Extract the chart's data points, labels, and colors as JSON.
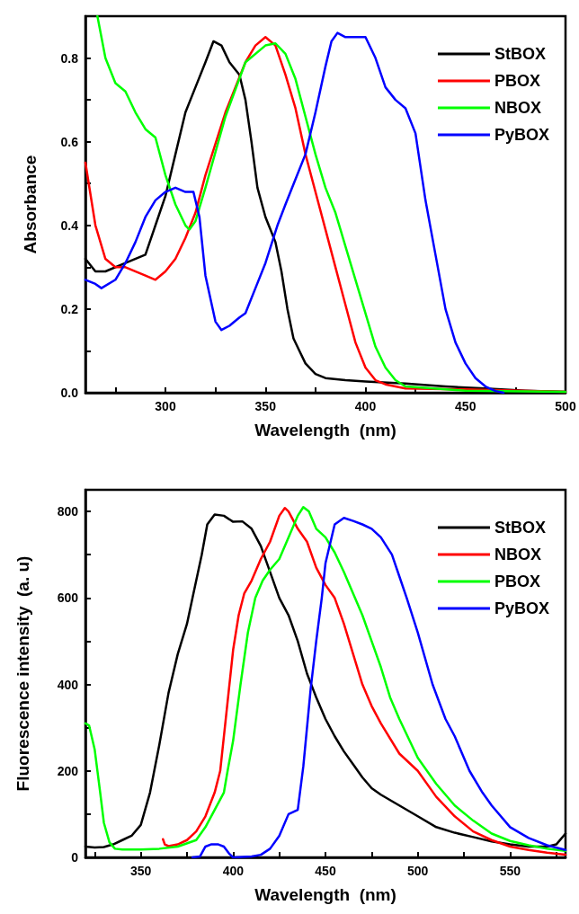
{
  "chart_data": [
    {
      "type": "line",
      "xlabel": "Wavelength  (nm)",
      "ylabel": "Absorbance",
      "xlim": [
        260,
        500
      ],
      "ylim": [
        0,
        0.9
      ],
      "xticks": [
        {
          "value": 275,
          "label": null
        },
        300,
        {
          "value": 325,
          "label": null
        },
        350,
        {
          "value": 375,
          "label": null
        },
        400,
        {
          "value": 425,
          "label": null
        },
        450,
        {
          "value": 475,
          "label": null
        },
        500
      ],
      "yticks": [
        {
          "value": 0,
          "label": "0.0"
        },
        {
          "value": 0.1,
          "label": null
        },
        0.2,
        {
          "value": 0.3,
          "label": null
        },
        0.4,
        {
          "value": 0.5,
          "label": null
        },
        0.6,
        {
          "value": 0.7,
          "label": null
        },
        0.8
      ],
      "legend": "top right",
      "grid": false,
      "marker": "none",
      "line_style": "solid",
      "series": [
        {
          "name": "StBOX",
          "color": "#000000",
          "x": [
            260,
            265,
            270,
            280,
            290,
            295,
            300,
            305,
            310,
            315,
            320,
            324,
            328,
            332,
            337,
            340,
            343,
            346,
            350,
            355,
            358,
            361,
            364,
            367,
            370,
            375,
            380,
            390,
            400,
            420,
            440,
            460,
            480,
            500
          ],
          "values": [
            0.32,
            0.29,
            0.29,
            0.31,
            0.33,
            0.4,
            0.47,
            0.57,
            0.67,
            0.73,
            0.79,
            0.84,
            0.83,
            0.79,
            0.76,
            0.7,
            0.6,
            0.49,
            0.42,
            0.36,
            0.29,
            0.2,
            0.13,
            0.1,
            0.07,
            0.045,
            0.035,
            0.03,
            0.027,
            0.022,
            0.015,
            0.01,
            0.005,
            0.002
          ]
        },
        {
          "name": "PBOX",
          "color": "#ff0000",
          "x": [
            260,
            265,
            270,
            275,
            280,
            290,
            295,
            300,
            305,
            310,
            315,
            320,
            330,
            340,
            345,
            350,
            355,
            360,
            365,
            370,
            375,
            380,
            385,
            390,
            395,
            400,
            405,
            410,
            420,
            450,
            500
          ],
          "values": [
            0.55,
            0.4,
            0.32,
            0.3,
            0.3,
            0.28,
            0.27,
            0.29,
            0.32,
            0.37,
            0.43,
            0.52,
            0.67,
            0.79,
            0.83,
            0.85,
            0.83,
            0.76,
            0.68,
            0.57,
            0.48,
            0.39,
            0.3,
            0.21,
            0.12,
            0.06,
            0.03,
            0.02,
            0.01,
            0.008,
            0.002
          ]
        },
        {
          "name": "NBOX",
          "color": "#00ff00",
          "x": [
            266,
            270,
            275,
            280,
            285,
            290,
            295,
            300,
            305,
            310,
            312,
            315,
            320,
            330,
            340,
            350,
            355,
            360,
            365,
            370,
            375,
            380,
            385,
            390,
            395,
            400,
            405,
            410,
            415,
            420,
            450,
            500
          ],
          "values": [
            0.9,
            0.8,
            0.74,
            0.72,
            0.67,
            0.63,
            0.61,
            0.52,
            0.45,
            0.4,
            0.39,
            0.41,
            0.49,
            0.66,
            0.79,
            0.83,
            0.835,
            0.81,
            0.75,
            0.66,
            0.57,
            0.49,
            0.43,
            0.35,
            0.27,
            0.19,
            0.11,
            0.06,
            0.03,
            0.015,
            0.005,
            0.002
          ]
        },
        {
          "name": "PyBOX",
          "color": "#0000ff",
          "x": [
            260,
            265,
            268,
            275,
            280,
            285,
            290,
            295,
            300,
            305,
            310,
            314,
            317,
            320,
            325,
            328,
            332,
            337,
            340,
            345,
            350,
            356,
            360,
            365,
            370,
            375,
            380,
            383,
            386,
            390,
            395,
            400,
            405,
            410,
            415,
            420,
            425,
            430,
            435,
            440,
            445,
            450,
            455,
            460,
            465,
            469
          ],
          "values": [
            0.27,
            0.26,
            0.25,
            0.27,
            0.31,
            0.36,
            0.42,
            0.46,
            0.48,
            0.49,
            0.48,
            0.48,
            0.42,
            0.28,
            0.17,
            0.15,
            0.16,
            0.18,
            0.19,
            0.25,
            0.31,
            0.4,
            0.45,
            0.51,
            0.57,
            0.67,
            0.78,
            0.84,
            0.86,
            0.85,
            0.85,
            0.85,
            0.8,
            0.73,
            0.7,
            0.68,
            0.62,
            0.46,
            0.33,
            0.2,
            0.12,
            0.07,
            0.035,
            0.015,
            0.004,
            0
          ]
        }
      ]
    },
    {
      "type": "line",
      "xlabel": "Wavelength  (nm)",
      "ylabel": "Fluorescence intensity  (a. u)",
      "xlim": [
        320,
        580
      ],
      "ylim": [
        0,
        850
      ],
      "xticks": [
        {
          "value": 325,
          "label": null
        },
        350,
        {
          "value": 375,
          "label": null
        },
        400,
        {
          "value": 425,
          "label": null
        },
        450,
        {
          "value": 475,
          "label": null
        },
        500,
        {
          "value": 525,
          "label": null
        },
        550,
        {
          "value": 575,
          "label": null
        }
      ],
      "yticks": [
        0,
        {
          "value": 100,
          "label": null
        },
        200,
        {
          "value": 300,
          "label": null
        },
        400,
        {
          "value": 500,
          "label": null
        },
        600,
        {
          "value": 700,
          "label": null
        },
        800
      ],
      "legend": "top right",
      "grid": false,
      "marker": "none",
      "line_style": "solid",
      "series": [
        {
          "name": "StBOX",
          "color": "#000000",
          "x": [
            320,
            325,
            330,
            335,
            340,
            345,
            350,
            355,
            360,
            365,
            370,
            375,
            378,
            383,
            386,
            390,
            395,
            400,
            405,
            410,
            415,
            420,
            425,
            430,
            435,
            440,
            445,
            450,
            455,
            460,
            465,
            470,
            475,
            480,
            490,
            500,
            510,
            520,
            530,
            540,
            550,
            560,
            570,
            575,
            580
          ],
          "values": [
            25,
            23,
            24,
            30,
            40,
            50,
            75,
            150,
            260,
            380,
            470,
            540,
            600,
            700,
            770,
            793,
            790,
            776,
            777,
            760,
            720,
            660,
            600,
            560,
            500,
            425,
            370,
            320,
            280,
            245,
            215,
            185,
            160,
            145,
            120,
            95,
            70,
            57,
            47,
            37,
            30,
            25,
            25,
            30,
            55
          ]
        },
        {
          "name": "NBOX",
          "color": "#ff0000",
          "x": [
            362,
            363,
            365,
            370,
            375,
            380,
            385,
            390,
            393,
            396,
            398,
            400,
            403,
            406,
            410,
            415,
            420,
            425,
            428,
            430,
            435,
            440,
            445,
            450,
            455,
            460,
            465,
            470,
            475,
            480,
            490,
            500,
            510,
            520,
            530,
            540,
            550,
            560,
            570,
            580
          ],
          "values": [
            42,
            30,
            26,
            30,
            40,
            60,
            95,
            150,
            200,
            320,
            400,
            480,
            560,
            610,
            640,
            690,
            730,
            790,
            808,
            800,
            760,
            730,
            670,
            630,
            600,
            540,
            470,
            400,
            350,
            310,
            240,
            200,
            140,
            95,
            60,
            40,
            25,
            17,
            11,
            6
          ]
        },
        {
          "name": "PBOX",
          "color": "#00ff00",
          "x": [
            320,
            322,
            325,
            328,
            330,
            333,
            336,
            340,
            350,
            360,
            370,
            380,
            385,
            390,
            395,
            397,
            400,
            404,
            408,
            412,
            416,
            420,
            425,
            430,
            435,
            438,
            441,
            445,
            450,
            455,
            460,
            465,
            470,
            475,
            480,
            485,
            490,
            500,
            510,
            520,
            530,
            540,
            550,
            560,
            570,
            580
          ],
          "values": [
            310,
            305,
            250,
            150,
            80,
            35,
            20,
            18,
            18,
            20,
            25,
            40,
            70,
            110,
            150,
            200,
            270,
            400,
            520,
            600,
            640,
            665,
            690,
            740,
            790,
            810,
            800,
            760,
            740,
            705,
            660,
            610,
            560,
            500,
            440,
            370,
            320,
            230,
            170,
            120,
            85,
            55,
            38,
            28,
            20,
            15
          ]
        },
        {
          "name": "PyBOX",
          "color": "#0000ff",
          "x": [
            378,
            382,
            385,
            388,
            392,
            395,
            398,
            400,
            410,
            415,
            420,
            425,
            430,
            435,
            438,
            440,
            442,
            445,
            448,
            450,
            455,
            460,
            465,
            470,
            475,
            480,
            486,
            490,
            494,
            500,
            508,
            515,
            520,
            528,
            535,
            540,
            550,
            560,
            570,
            580
          ],
          "values": [
            0,
            2,
            25,
            30,
            30,
            25,
            8,
            0,
            2,
            6,
            20,
            50,
            100,
            110,
            210,
            300,
            390,
            500,
            600,
            680,
            770,
            785,
            778,
            770,
            760,
            740,
            700,
            650,
            600,
            520,
            400,
            320,
            280,
            200,
            150,
            120,
            70,
            45,
            28,
            17
          ]
        }
      ]
    }
  ]
}
